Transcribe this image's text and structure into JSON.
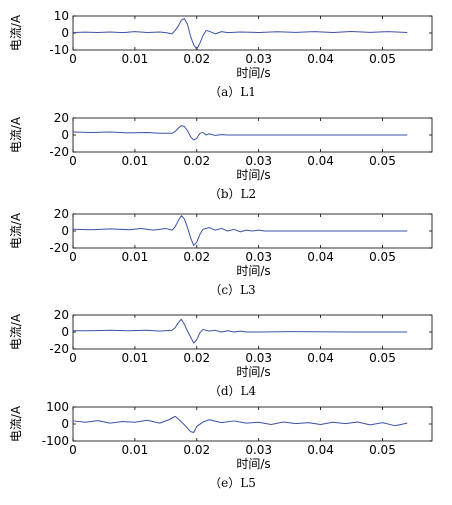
{
  "chart_data": [
    {
      "type": "line",
      "caption": "（a）L1",
      "xlabel": "时间/s",
      "ylabel": "电流/A",
      "xlim": [
        0,
        0.058
      ],
      "ylim": [
        -10,
        10
      ],
      "xticks": [
        0,
        0.01,
        0.02,
        0.03,
        0.04,
        0.05
      ],
      "xtick_labels": [
        "0",
        "0.01",
        "0.02",
        "0.03",
        "0.04",
        "0.05"
      ],
      "yticks": [
        10,
        0,
        -10
      ],
      "ytick_labels": [
        "10",
        "0",
        "-10"
      ],
      "color": "#3d50a8",
      "series": [
        {
          "x": [
            0,
            0.002,
            0.004,
            0.006,
            0.008,
            0.01,
            0.012,
            0.014,
            0.015,
            0.016,
            0.0165,
            0.017,
            0.0175,
            0.018,
            0.0185,
            0.019,
            0.0195,
            0.02,
            0.0205,
            0.021,
            0.0215,
            0.022,
            0.023,
            0.024,
            0.025,
            0.027,
            0.03,
            0.033,
            0.036,
            0.039,
            0.042,
            0.045,
            0.048,
            0.051,
            0.054
          ],
          "y": [
            0.3,
            0.5,
            0.3,
            0.6,
            0.2,
            0.8,
            0.3,
            0.6,
            0.2,
            -0.5,
            1.5,
            4,
            7.5,
            8.5,
            5,
            -2,
            -7,
            -9.5,
            -6,
            -1.5,
            1.5,
            1,
            -0.5,
            0.8,
            0.2,
            0.6,
            0.3,
            0.7,
            0.4,
            0.8,
            0.3,
            0.9,
            0.4,
            0.8,
            0.3
          ]
        }
      ]
    },
    {
      "type": "line",
      "caption": "（b）L2",
      "xlabel": "时间/s",
      "ylabel": "电流/A",
      "xlim": [
        0,
        0.058
      ],
      "ylim": [
        -20,
        20
      ],
      "xticks": [
        0,
        0.01,
        0.02,
        0.03,
        0.04,
        0.05
      ],
      "xtick_labels": [
        "0",
        "0.01",
        "0.02",
        "0.03",
        "0.04",
        "0.05"
      ],
      "yticks": [
        20,
        0,
        -20
      ],
      "ytick_labels": [
        "20",
        "0",
        "-20"
      ],
      "color": "#3d50a8",
      "series": [
        {
          "x": [
            0,
            0.003,
            0.006,
            0.009,
            0.012,
            0.014,
            0.016,
            0.0165,
            0.017,
            0.0175,
            0.018,
            0.0185,
            0.019,
            0.0195,
            0.02,
            0.0205,
            0.021,
            0.0215,
            0.022,
            0.023,
            0.024,
            0.025,
            0.03,
            0.04,
            0.054
          ],
          "y": [
            3.5,
            3,
            3.5,
            2.5,
            3,
            2,
            2,
            4,
            8,
            11,
            10,
            5,
            -2,
            -6,
            -4,
            2,
            3,
            0,
            1.5,
            -0.5,
            0.5,
            0,
            0,
            0,
            0
          ]
        }
      ]
    },
    {
      "type": "line",
      "caption": "（c）L3",
      "xlabel": "时间/s",
      "ylabel": "电流/A",
      "xlim": [
        0,
        0.058
      ],
      "ylim": [
        -20,
        20
      ],
      "xticks": [
        0,
        0.01,
        0.02,
        0.03,
        0.04,
        0.05
      ],
      "xtick_labels": [
        "0",
        "0.01",
        "0.02",
        "0.03",
        "0.04",
        "0.05"
      ],
      "yticks": [
        20,
        0,
        -20
      ],
      "ytick_labels": [
        "20",
        "0",
        "-20"
      ],
      "color": "#3d50a8",
      "series": [
        {
          "x": [
            0,
            0.003,
            0.006,
            0.009,
            0.011,
            0.013,
            0.015,
            0.016,
            0.0165,
            0.017,
            0.0175,
            0.018,
            0.0185,
            0.019,
            0.0195,
            0.02,
            0.0205,
            0.021,
            0.022,
            0.023,
            0.024,
            0.025,
            0.026,
            0.027,
            0.028,
            0.029,
            0.03,
            0.031,
            0.04,
            0.054
          ],
          "y": [
            2,
            1.5,
            2.5,
            1.5,
            3,
            1,
            3,
            1,
            5,
            12,
            18,
            14,
            4,
            -8,
            -17,
            -13,
            -4,
            2,
            4,
            1,
            3,
            0,
            2,
            -1,
            1,
            0,
            1,
            0,
            0,
            0
          ]
        }
      ]
    },
    {
      "type": "line",
      "caption": "（d）L4",
      "xlabel": "时间/s",
      "ylabel": "电流/A",
      "xlim": [
        0,
        0.058
      ],
      "ylim": [
        -20,
        20
      ],
      "xticks": [
        0,
        0.01,
        0.02,
        0.03,
        0.04,
        0.05
      ],
      "xtick_labels": [
        "0",
        "0.01",
        "0.02",
        "0.03",
        "0.04",
        "0.05"
      ],
      "yticks": [
        20,
        0,
        -20
      ],
      "ytick_labels": [
        "20",
        "0",
        "-20"
      ],
      "color": "#3d50a8",
      "series": [
        {
          "x": [
            0,
            0.003,
            0.006,
            0.009,
            0.012,
            0.014,
            0.016,
            0.0165,
            0.017,
            0.0175,
            0.018,
            0.0185,
            0.019,
            0.0195,
            0.02,
            0.0205,
            0.021,
            0.022,
            0.023,
            0.024,
            0.025,
            0.026,
            0.027,
            0.028,
            0.03,
            0.035,
            0.045,
            0.054
          ],
          "y": [
            1.5,
            1.5,
            2,
            1.5,
            2,
            1,
            2,
            5,
            11,
            15,
            9,
            1,
            -6,
            -13,
            -9,
            -1,
            3,
            1,
            2,
            0,
            1.5,
            0,
            1,
            0,
            0,
            0.5,
            0,
            0
          ]
        }
      ]
    },
    {
      "type": "line",
      "caption": "（e）L5",
      "xlabel": "时间/s",
      "ylabel": "电流/A",
      "xlim": [
        0,
        0.058
      ],
      "ylim": [
        -100,
        100
      ],
      "xticks": [
        0,
        0.01,
        0.02,
        0.03,
        0.04,
        0.05
      ],
      "xtick_labels": [
        "0",
        "0.01",
        "0.02",
        "0.03",
        "0.04",
        "0.05"
      ],
      "yticks": [
        100,
        0,
        -100
      ],
      "ytick_labels": [
        "100",
        "0",
        "-100"
      ],
      "color": "#3d50a8",
      "series": [
        {
          "x": [
            0,
            0.002,
            0.004,
            0.006,
            0.008,
            0.01,
            0.012,
            0.014,
            0.0155,
            0.0165,
            0.017,
            0.018,
            0.019,
            0.0195,
            0.02,
            0.021,
            0.022,
            0.024,
            0.026,
            0.028,
            0.03,
            0.032,
            0.034,
            0.036,
            0.038,
            0.04,
            0.042,
            0.044,
            0.046,
            0.048,
            0.05,
            0.052,
            0.054
          ],
          "y": [
            18,
            10,
            20,
            5,
            15,
            10,
            22,
            5,
            25,
            45,
            30,
            -5,
            -45,
            -50,
            -15,
            12,
            25,
            8,
            18,
            5,
            10,
            -3,
            12,
            2,
            8,
            -3,
            10,
            2,
            12,
            -5,
            8,
            -10,
            5
          ]
        }
      ]
    }
  ]
}
